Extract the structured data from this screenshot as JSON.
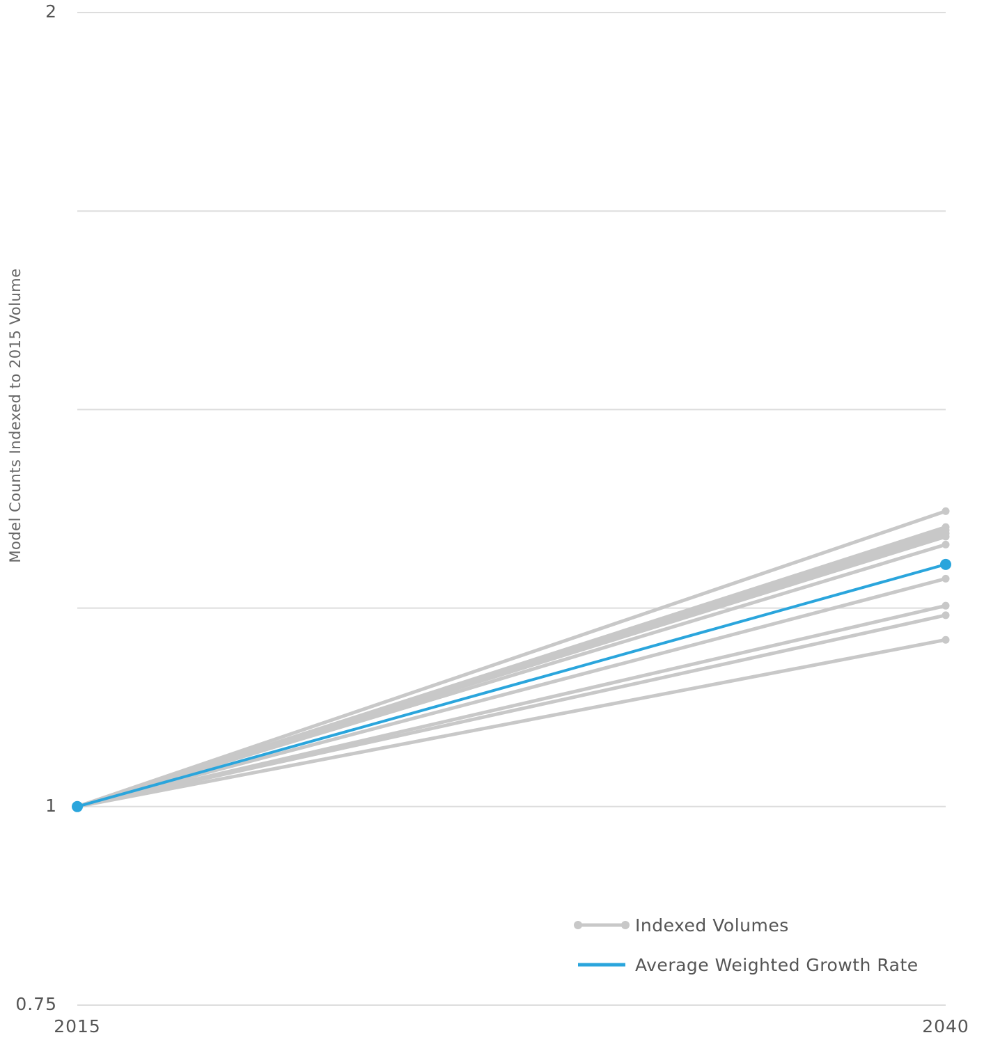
{
  "chart_data": {
    "type": "line",
    "title": "",
    "xlabel": "",
    "ylabel": "Model Counts Indexed to 2015 Volume",
    "x": [
      "2015",
      "2040"
    ],
    "x_tick_labels": [
      "2015",
      "2040"
    ],
    "y_tick_labels": [
      {
        "value": 2,
        "label": "2"
      },
      {
        "value": 1,
        "label": "1"
      },
      {
        "value": 0.75,
        "label": "0.75"
      }
    ],
    "y_gridlines": [
      0.75,
      1,
      1.25,
      1.5,
      1.75,
      2
    ],
    "ylim": [
      0.75,
      2
    ],
    "grid": true,
    "legend_position": "bottom-right",
    "legend": {
      "indexed_label": "Indexed Volumes",
      "average_label": "Average Weighted Growth Rate"
    },
    "colors": {
      "indexed": "#c8c8c8",
      "average": "#2aa5dc",
      "grid": "#dddddd"
    },
    "series": [
      {
        "group": "indexed",
        "values": [
          1,
          1.372
        ]
      },
      {
        "group": "indexed",
        "values": [
          1,
          1.352
        ]
      },
      {
        "group": "indexed",
        "values": [
          1,
          1.348
        ]
      },
      {
        "group": "indexed",
        "values": [
          1,
          1.344
        ]
      },
      {
        "group": "indexed",
        "values": [
          1,
          1.34
        ]
      },
      {
        "group": "indexed",
        "values": [
          1,
          1.33
        ]
      },
      {
        "group": "indexed",
        "values": [
          1,
          1.287
        ]
      },
      {
        "group": "indexed",
        "values": [
          1,
          1.253
        ]
      },
      {
        "group": "indexed",
        "values": [
          1,
          1.241
        ]
      },
      {
        "group": "indexed",
        "values": [
          1,
          1.21
        ]
      },
      {
        "group": "average",
        "name": "Average Weighted Growth Rate",
        "values": [
          1,
          1.305
        ]
      }
    ]
  }
}
